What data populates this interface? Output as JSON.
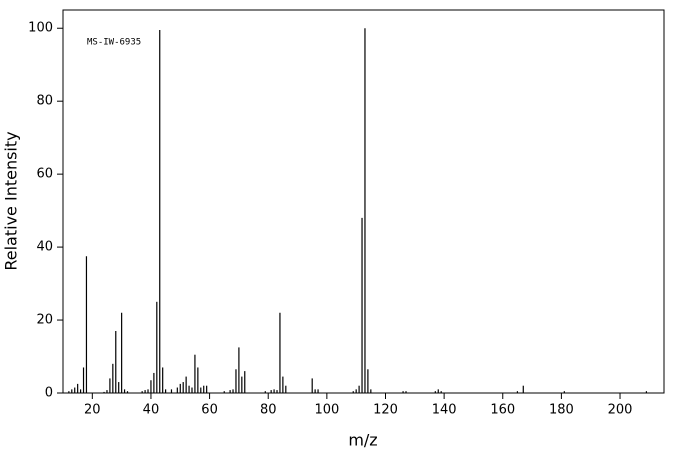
{
  "chart_data": {
    "type": "stem",
    "annotation": "MS-IW-6935",
    "x_label": "m/z",
    "y_label": "Relative Intensity",
    "color": "#000000",
    "x": [
      12,
      13,
      14,
      15,
      16,
      17,
      18,
      24,
      25,
      26,
      27,
      28,
      29,
      30,
      31,
      32,
      37,
      38,
      39,
      40,
      41,
      42,
      43,
      44,
      45,
      47,
      49,
      50,
      51,
      52,
      53,
      54,
      55,
      56,
      57,
      58,
      59,
      65,
      67,
      68,
      69,
      70,
      71,
      72,
      79,
      81,
      82,
      83,
      84,
      85,
      86,
      95,
      96,
      97,
      109,
      110,
      111,
      112,
      113,
      114,
      115,
      126,
      127,
      137,
      138,
      139,
      165,
      167,
      181,
      209
    ],
    "values": [
      0.5,
      1,
      1.5,
      2.5,
      1,
      7,
      37.5,
      0.3,
      0.8,
      4,
      8,
      17,
      3,
      22,
      1,
      0.5,
      0.5,
      0.8,
      1,
      3.5,
      5.5,
      25,
      99.5,
      7,
      1,
      1,
      1.5,
      2.5,
      3,
      4.5,
      2,
      1.5,
      10.5,
      7,
      1.5,
      2,
      2,
      0.5,
      0.8,
      1,
      6.5,
      12.5,
      4.5,
      6,
      0.5,
      0.8,
      1,
      0.8,
      22,
      4.5,
      2,
      4,
      1,
      1,
      0.5,
      1,
      2,
      48,
      100,
      6.5,
      1,
      0.5,
      0.5,
      0.5,
      1,
      0.5,
      0.5,
      2,
      0.5,
      0.5
    ],
    "xlim": [
      10,
      215
    ],
    "ylim": [
      0,
      105
    ],
    "xticks": [
      20,
      40,
      60,
      80,
      100,
      120,
      140,
      160,
      180,
      200
    ],
    "yticks": [
      0,
      20,
      40,
      60,
      80,
      100
    ]
  }
}
